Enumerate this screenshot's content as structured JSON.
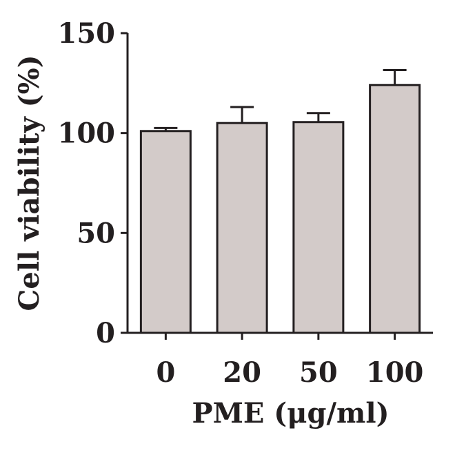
{
  "chart_data": {
    "type": "bar",
    "categories": [
      "0",
      "20",
      "50",
      "100"
    ],
    "values": [
      101,
      105,
      105.5,
      124
    ],
    "error_upper": [
      1.5,
      8,
      4.5,
      7.5
    ],
    "xlabel": "PME (μg/ml)",
    "ylabel": "Cell viability (%)",
    "ylim": [
      0,
      150
    ],
    "yticks": [
      0,
      50,
      100,
      150
    ],
    "ytick_labels": [
      "0",
      "50",
      "100",
      "150"
    ],
    "grid": false,
    "bar_color": "#d3cbc9",
    "edge_color": "#231f20"
  }
}
